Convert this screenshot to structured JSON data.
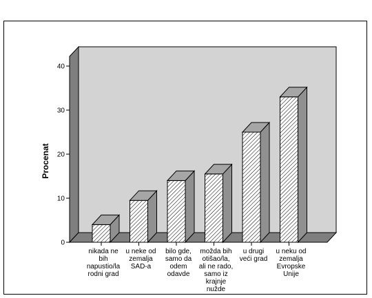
{
  "chart_data": {
    "type": "bar",
    "ylabel": "Procenat",
    "xlabel": "",
    "ylim": [
      0,
      40
    ],
    "yticks": [
      0,
      10,
      20,
      30,
      40
    ],
    "grid": false,
    "categories": [
      [
        "nikada ne",
        "bih",
        "napustio/la",
        "rodni grad"
      ],
      [
        "u neke od",
        "zemalja",
        "SAD-a"
      ],
      [
        "bilo gde,",
        "samo da",
        "odem",
        "odavde"
      ],
      [
        "možda bih",
        "otišao/la,",
        "ali ne rado,",
        "samo iz",
        "krajnje",
        "nužde"
      ],
      [
        "u drugi",
        "veći grad"
      ],
      [
        "u neku od",
        "zemalja",
        "Evropske",
        "Unije"
      ]
    ],
    "values": [
      4,
      9.5,
      14,
      15.5,
      25,
      33
    ],
    "colors": {
      "wall": "#d3d3d3",
      "floor": "#7f7f7f",
      "bar_top": "#a6a6a6",
      "bar_side": "#909090",
      "bar_front": "#ffffff"
    }
  }
}
